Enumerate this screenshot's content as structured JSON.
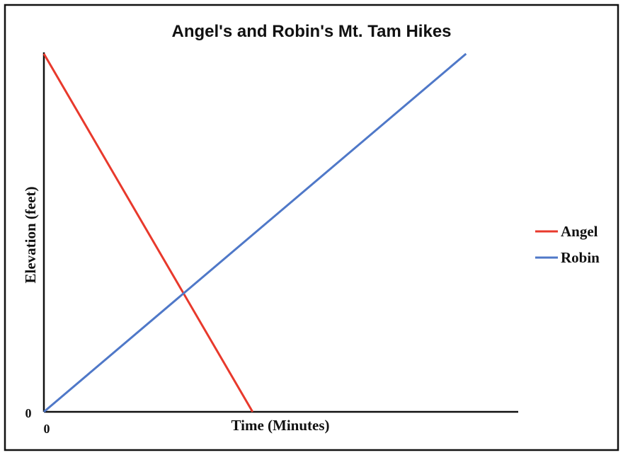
{
  "chart_data": {
    "type": "line",
    "title": "Angel's and Robin's Mt. Tam Hikes",
    "xlabel": "Time (Minutes)",
    "ylabel": "Elevation (feet)",
    "x_tick_labels": [
      "0"
    ],
    "y_tick_labels": [
      "0"
    ],
    "grid": false,
    "legend_position": "right",
    "series": [
      {
        "name": "Angel",
        "color": "#e8392c",
        "points": [
          [
            0,
            1
          ],
          [
            0.44,
            0
          ]
        ]
      },
      {
        "name": "Robin",
        "color": "#4f78c8",
        "points": [
          [
            0,
            0
          ],
          [
            0.89,
            1
          ]
        ]
      }
    ]
  }
}
